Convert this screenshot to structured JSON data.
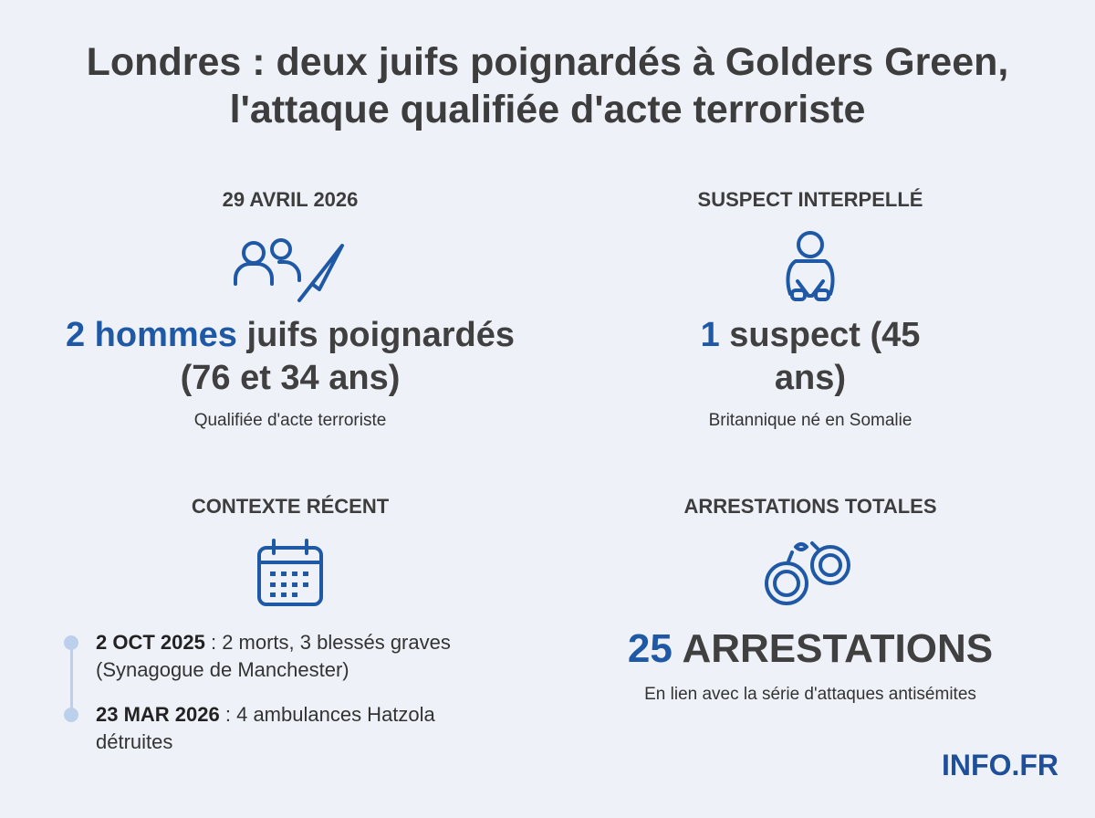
{
  "header": {
    "title_lines": [
      "Londres : deux juifs poignardés à Golders Green,",
      "l'attaque qualifiée d'acte terroriste"
    ]
  },
  "panels": {
    "attack": {
      "heading": "29 AVRIL 2026",
      "highlight": "2 hommes",
      "text": "juifs poignardés (76 et 34 ans)",
      "note": "Qualifiée d'acte terroriste"
    },
    "suspect": {
      "heading": "SUSPECT INTERPELLÉ",
      "highlight": "1",
      "text": "suspect (45 ans)",
      "note": "Britannique né en Somalie"
    },
    "context": {
      "heading": "CONTEXTE RÉCENT",
      "items": [
        {
          "date": "2 OCT 2025",
          "text": ": 2 morts, 3 blessés graves (Synagogue de Manchester)"
        },
        {
          "date": "23 MAR 2026",
          "text": ": 4 ambulances Hatzola détruites"
        }
      ]
    },
    "arrests": {
      "heading": "ARRESTATIONS TOTALES",
      "highlight": "25",
      "text": "ARRESTATIONS",
      "note": "En lien avec la série d'attaques antisémites"
    }
  },
  "footer": {
    "brand": "INFO.FR"
  }
}
